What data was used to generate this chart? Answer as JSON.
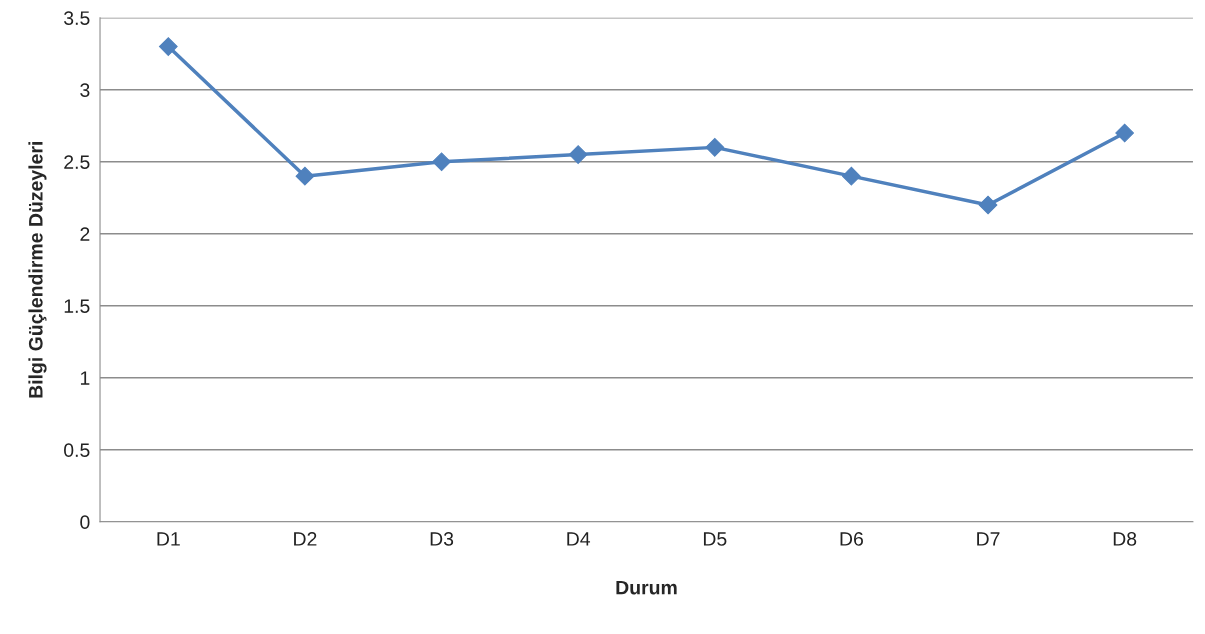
{
  "chart_data": {
    "type": "line",
    "xlabel": "Durum",
    "ylabel": "Bilgi Güçlendirme Düzeyleri",
    "categories": [
      "D1",
      "D2",
      "D3",
      "D4",
      "D5",
      "D6",
      "D7",
      "D8"
    ],
    "series": [
      {
        "color": "#4f81bd",
        "values": [
          3.3,
          2.4,
          2.5,
          2.55,
          2.6,
          2.4,
          2.2,
          2.7
        ]
      }
    ],
    "ylim": [
      0,
      3.5
    ],
    "yticks": [
      0,
      0.5,
      1,
      1.5,
      2,
      2.5,
      3,
      3.5
    ],
    "grid": "y",
    "marker": "diamond",
    "line_style": "solid",
    "legend": false
  }
}
